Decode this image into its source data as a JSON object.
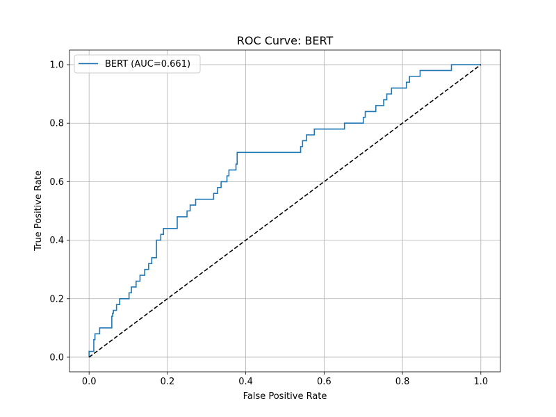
{
  "chart_data": {
    "type": "line",
    "title": "ROC Curve: BERT",
    "xlabel": "False Positive Rate",
    "ylabel": "True Positive Rate",
    "xlim": [
      -0.05,
      1.05
    ],
    "ylim": [
      -0.05,
      1.05
    ],
    "grid": true,
    "legend_position": "upper-left",
    "x_ticks": [
      "0.0",
      "0.2",
      "0.4",
      "0.6",
      "0.8",
      "1.0"
    ],
    "y_ticks": [
      "0.0",
      "0.2",
      "0.4",
      "0.6",
      "0.8",
      "1.0"
    ],
    "series": [
      {
        "name": "BERT (AUC=0.661)",
        "color": "#1f77b4",
        "style": "solid",
        "x": [
          0.0,
          0.0,
          0.012,
          0.012,
          0.015,
          0.015,
          0.027,
          0.027,
          0.058,
          0.058,
          0.06,
          0.06,
          0.062,
          0.062,
          0.07,
          0.07,
          0.078,
          0.078,
          0.102,
          0.102,
          0.108,
          0.108,
          0.12,
          0.12,
          0.13,
          0.13,
          0.142,
          0.142,
          0.152,
          0.152,
          0.16,
          0.16,
          0.172,
          0.172,
          0.183,
          0.183,
          0.19,
          0.19,
          0.225,
          0.225,
          0.25,
          0.25,
          0.258,
          0.258,
          0.272,
          0.272,
          0.318,
          0.318,
          0.328,
          0.328,
          0.337,
          0.337,
          0.352,
          0.352,
          0.357,
          0.357,
          0.375,
          0.375,
          0.378,
          0.378,
          0.54,
          0.54,
          0.545,
          0.545,
          0.555,
          0.555,
          0.575,
          0.575,
          0.652,
          0.652,
          0.7,
          0.7,
          0.705,
          0.705,
          0.732,
          0.732,
          0.752,
          0.752,
          0.76,
          0.76,
          0.772,
          0.772,
          0.81,
          0.81,
          0.818,
          0.818,
          0.845,
          0.845,
          0.925,
          0.925,
          1.0
        ],
        "y": [
          0.0,
          0.02,
          0.02,
          0.06,
          0.06,
          0.08,
          0.08,
          0.1,
          0.1,
          0.14,
          0.14,
          0.15,
          0.15,
          0.16,
          0.16,
          0.18,
          0.18,
          0.2,
          0.2,
          0.22,
          0.22,
          0.24,
          0.24,
          0.26,
          0.26,
          0.28,
          0.28,
          0.3,
          0.3,
          0.32,
          0.32,
          0.34,
          0.34,
          0.4,
          0.4,
          0.42,
          0.42,
          0.44,
          0.44,
          0.48,
          0.48,
          0.5,
          0.5,
          0.52,
          0.52,
          0.54,
          0.54,
          0.56,
          0.56,
          0.58,
          0.58,
          0.6,
          0.6,
          0.62,
          0.62,
          0.64,
          0.64,
          0.66,
          0.66,
          0.7,
          0.7,
          0.72,
          0.72,
          0.74,
          0.74,
          0.76,
          0.76,
          0.78,
          0.78,
          0.8,
          0.8,
          0.82,
          0.82,
          0.84,
          0.84,
          0.86,
          0.86,
          0.88,
          0.88,
          0.9,
          0.9,
          0.92,
          0.92,
          0.94,
          0.94,
          0.96,
          0.96,
          0.98,
          0.98,
          1.0,
          1.0
        ]
      },
      {
        "name": "",
        "color": "#000000",
        "style": "dashed",
        "x": [
          0.0,
          1.0
        ],
        "y": [
          0.0,
          1.0
        ]
      }
    ]
  }
}
